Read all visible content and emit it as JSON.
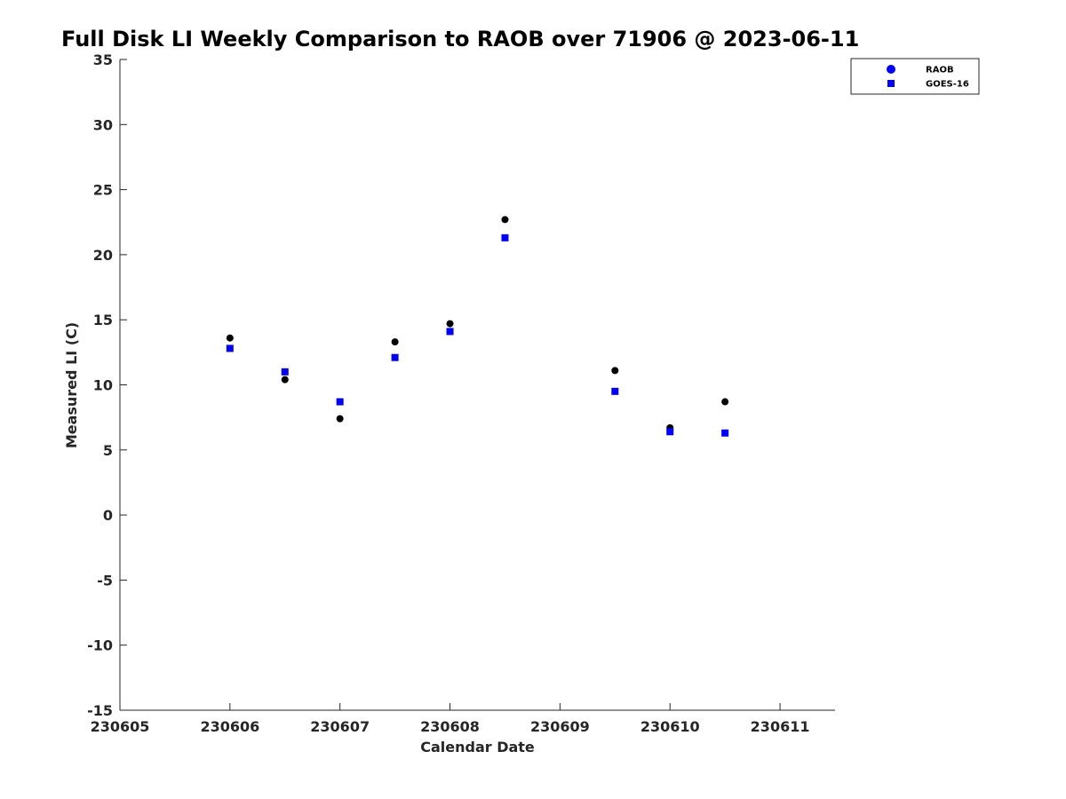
{
  "chart_data": {
    "type": "scatter",
    "title": "Full Disk LI Weekly Comparison to RAOB over 71906 @ 2023-06-11",
    "xlabel": "Calendar Date",
    "ylabel": "Measured LI (C)",
    "xlim": [
      230605,
      230611.5
    ],
    "ylim": [
      -15,
      35
    ],
    "xticks": [
      "230605",
      "230606",
      "230607",
      "230608",
      "230609",
      "230610",
      "230611"
    ],
    "yticks": [
      "-15",
      "-10",
      "-5",
      "0",
      "5",
      "10",
      "15",
      "20",
      "25",
      "30",
      "35"
    ],
    "grid": false,
    "legend_position": "top-right",
    "series": [
      {
        "name": "RAOB",
        "marker": "circle",
        "color": "#000000",
        "legend_color": "#0000ff",
        "points": [
          {
            "x": 230606.0,
            "y": 13.6
          },
          {
            "x": 230606.5,
            "y": 10.4
          },
          {
            "x": 230607.0,
            "y": 7.4
          },
          {
            "x": 230607.5,
            "y": 13.3
          },
          {
            "x": 230608.0,
            "y": 14.7
          },
          {
            "x": 230608.5,
            "y": 22.7
          },
          {
            "x": 230609.5,
            "y": 11.1
          },
          {
            "x": 230610.0,
            "y": 6.7
          },
          {
            "x": 230610.5,
            "y": 8.7
          }
        ]
      },
      {
        "name": "GOES-16",
        "marker": "square",
        "color": "#0000ff",
        "legend_color": "#0000ff",
        "points": [
          {
            "x": 230606.0,
            "y": 12.8
          },
          {
            "x": 230606.5,
            "y": 11.0
          },
          {
            "x": 230607.0,
            "y": 8.7
          },
          {
            "x": 230607.5,
            "y": 12.1
          },
          {
            "x": 230608.0,
            "y": 14.1
          },
          {
            "x": 230608.5,
            "y": 21.3
          },
          {
            "x": 230609.5,
            "y": 9.5
          },
          {
            "x": 230610.0,
            "y": 6.4
          },
          {
            "x": 230610.5,
            "y": 6.3
          }
        ]
      }
    ]
  }
}
